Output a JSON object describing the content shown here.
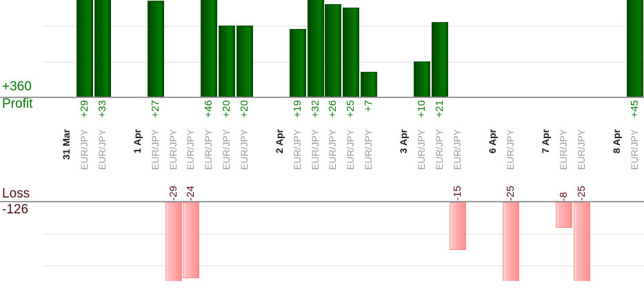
{
  "chart_data": {
    "type": "bar",
    "title": "",
    "left_labels": {
      "profit_total": "+360",
      "profit_title": "Profit",
      "loss_title": "Loss",
      "loss_total": "-126"
    },
    "groups": [
      {
        "date": "31 Mar",
        "trades": [
          {
            "symbol": "EUR/JPY",
            "pnl": 29
          },
          {
            "symbol": "EUR/JPY",
            "pnl": 33
          }
        ]
      },
      {
        "date": "1 Apr",
        "trades": [
          {
            "symbol": "EUR/JPY",
            "pnl": 27
          },
          {
            "symbol": "EUR/JPY",
            "pnl": -29
          },
          {
            "symbol": "EUR/JPY",
            "pnl": -24
          },
          {
            "symbol": "EUR/JPY",
            "pnl": 46
          },
          {
            "symbol": "EUR/JPY",
            "pnl": 20
          },
          {
            "symbol": "EUR/JPY",
            "pnl": 20
          }
        ]
      },
      {
        "date": "2 Apr",
        "trades": [
          {
            "symbol": "EUR/JPY",
            "pnl": 19
          },
          {
            "symbol": "EUR/JPY",
            "pnl": 32
          },
          {
            "symbol": "EUR/JPY",
            "pnl": 26
          },
          {
            "symbol": "EUR/JPY",
            "pnl": 25
          },
          {
            "symbol": "EUR/JPY",
            "pnl": 7
          }
        ]
      },
      {
        "date": "3 Apr",
        "trades": [
          {
            "symbol": "EUR/JPY",
            "pnl": 10
          },
          {
            "symbol": "EUR/JPY",
            "pnl": 21
          },
          {
            "symbol": "EUR/JPY",
            "pnl": -15
          }
        ]
      },
      {
        "date": "6 Apr",
        "trades": [
          {
            "symbol": "EUR/JPY",
            "pnl": -25
          }
        ]
      },
      {
        "date": "7 Apr",
        "trades": [
          {
            "symbol": "EUR/JPY",
            "pnl": -8
          },
          {
            "symbol": "EUR/JPY",
            "pnl": -25
          }
        ]
      },
      {
        "date": "8 Apr",
        "trades": [
          {
            "symbol": "EUR/JPY",
            "pnl": 45
          }
        ]
      }
    ],
    "axes": {
      "profit_gridline_values": [
        10,
        20
      ],
      "loss_gridline_values": [
        10,
        20
      ],
      "legend_position": "none",
      "grid": "horizontal-light"
    },
    "colors": {
      "profit_text": "#007700",
      "loss_text": "#4c0f0f",
      "profit_value_label": "#0b7a0b",
      "loss_value_label": "#571313",
      "profit_bar": "#027c02",
      "loss_bar": "#ff9f9f",
      "date_label": "#1b1b1b",
      "symbol_label": "#9b9b9b",
      "axis_line": "#999999",
      "gridline": "#efefef"
    }
  }
}
